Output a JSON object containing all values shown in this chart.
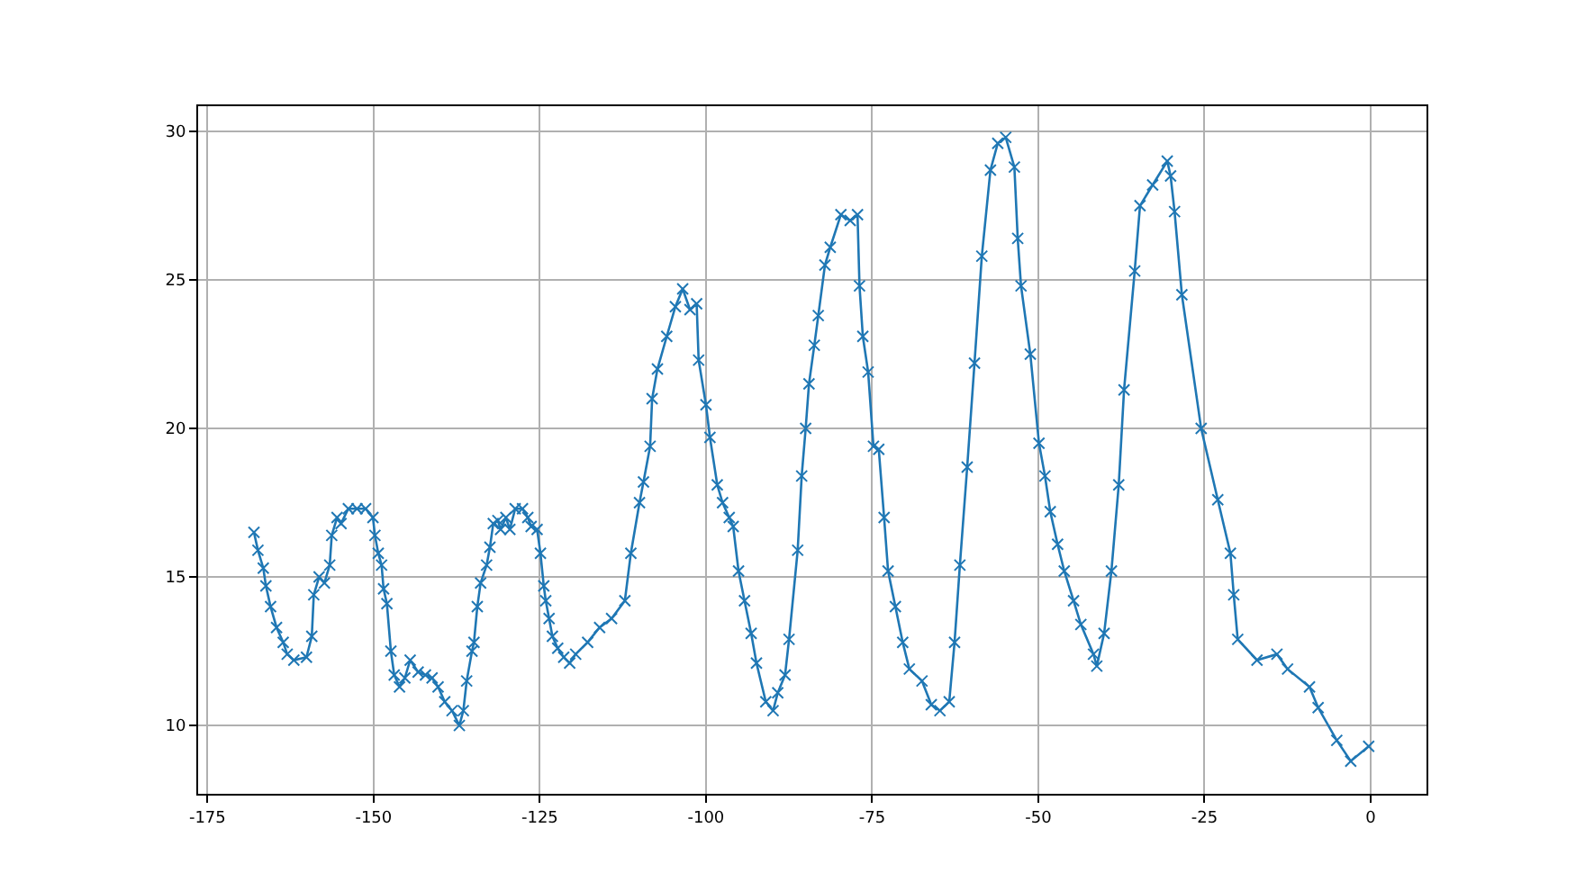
{
  "chart_data": {
    "type": "line",
    "marker": "cross",
    "line_style": "solid",
    "grid": true,
    "xlim": [
      -176.4,
      8.4
    ],
    "ylim": [
      7.7,
      30.85
    ],
    "xticks": [
      -175,
      -150,
      -125,
      -100,
      -75,
      -50,
      -25,
      0
    ],
    "yticks": [
      10,
      15,
      20,
      25,
      30
    ],
    "series": [
      {
        "color": "#1f77b4",
        "x": [
          -168.0,
          -167.4,
          -166.6,
          -166.2,
          -165.5,
          -164.6,
          -163.6,
          -163.0,
          -162.0,
          -160.1,
          -159.3,
          -159.0,
          -158.2,
          -157.4,
          -156.6,
          -156.3,
          -155.5,
          -154.9,
          -153.8,
          -152.5,
          -151.2,
          -150.1,
          -149.8,
          -149.3,
          -148.8,
          -148.5,
          -148.0,
          -147.4,
          -146.9,
          -146.1,
          -145.3,
          -144.5,
          -143.3,
          -142.2,
          -141.2,
          -140.3,
          -139.3,
          -138.2,
          -137.1,
          -136.5,
          -136.0,
          -135.2,
          -134.9,
          -134.4,
          -133.9,
          -133.0,
          -132.5,
          -132.0,
          -131.3,
          -130.9,
          -130.1,
          -129.5,
          -128.7,
          -127.6,
          -126.8,
          -126.3,
          -125.4,
          -124.9,
          -124.4,
          -124.1,
          -123.6,
          -123.1,
          -122.3,
          -121.4,
          -120.5,
          -119.6,
          -117.8,
          -116.0,
          -114.2,
          -112.2,
          -111.3,
          -110.0,
          -109.4,
          -108.4,
          -108.1,
          -107.3,
          -105.9,
          -104.6,
          -103.5,
          -102.4,
          -101.4,
          -101.1,
          -100.0,
          -99.4,
          -98.3,
          -97.5,
          -96.5,
          -95.9,
          -95.1,
          -94.2,
          -93.2,
          -92.4,
          -91.0,
          -89.9,
          -89.2,
          -88.1,
          -87.5,
          -86.2,
          -85.6,
          -85.0,
          -84.5,
          -83.7,
          -83.1,
          -82.1,
          -81.3,
          -79.7,
          -78.3,
          -77.2,
          -76.9,
          -76.4,
          -75.6,
          -74.8,
          -74.0,
          -73.2,
          -72.6,
          -71.5,
          -70.4,
          -69.4,
          -67.5,
          -66.1,
          -64.8,
          -63.4,
          -62.6,
          -61.8,
          -60.7,
          -59.6,
          -58.5,
          -57.2,
          -56.1,
          -54.9,
          -53.6,
          -53.1,
          -52.6,
          -51.2,
          -49.9,
          -49.0,
          -48.2,
          -47.1,
          -46.1,
          -44.7,
          -43.6,
          -41.7,
          -41.2,
          -40.1,
          -39.0,
          -37.9,
          -37.1,
          -35.5,
          -34.7,
          -32.8,
          -30.6,
          -30.1,
          -29.5,
          -28.4,
          -25.5,
          -23.0,
          -21.1,
          -20.6,
          -20.0,
          -17.1,
          -14.1,
          -12.5,
          -9.2,
          -7.9,
          -5.1,
          -3.0,
          -0.3
        ],
        "values": [
          16.5,
          15.9,
          15.3,
          14.7,
          14.0,
          13.3,
          12.8,
          12.4,
          12.2,
          12.3,
          13.0,
          14.4,
          15.0,
          14.8,
          15.4,
          16.4,
          17.0,
          16.8,
          17.3,
          17.3,
          17.3,
          17.0,
          16.4,
          15.8,
          15.4,
          14.6,
          14.1,
          12.5,
          11.7,
          11.3,
          11.6,
          12.2,
          11.8,
          11.7,
          11.6,
          11.3,
          10.8,
          10.5,
          10.0,
          10.5,
          11.5,
          12.5,
          12.8,
          14.0,
          14.8,
          15.4,
          16.0,
          16.8,
          16.9,
          16.6,
          17.0,
          16.6,
          17.3,
          17.3,
          17.0,
          16.7,
          16.6,
          15.8,
          14.7,
          14.2,
          13.6,
          13.0,
          12.6,
          12.3,
          12.1,
          12.4,
          12.8,
          13.3,
          13.6,
          14.2,
          15.8,
          17.5,
          18.2,
          19.4,
          21.0,
          22.0,
          23.1,
          24.1,
          24.7,
          24.0,
          24.2,
          22.3,
          20.8,
          19.7,
          18.1,
          17.5,
          17.0,
          16.7,
          15.2,
          14.2,
          13.1,
          12.1,
          10.8,
          10.5,
          11.1,
          11.7,
          12.9,
          15.9,
          18.4,
          20.0,
          21.5,
          22.8,
          23.8,
          25.5,
          26.1,
          27.2,
          27.0,
          27.2,
          24.8,
          23.1,
          21.9,
          19.4,
          19.3,
          17.0,
          15.2,
          14.0,
          12.8,
          11.9,
          11.5,
          10.7,
          10.5,
          10.8,
          12.8,
          15.4,
          18.7,
          22.2,
          25.8,
          28.7,
          29.6,
          29.8,
          28.8,
          26.4,
          24.8,
          22.5,
          19.5,
          18.4,
          17.2,
          16.1,
          15.2,
          14.2,
          13.4,
          12.4,
          12.0,
          13.1,
          15.2,
          18.1,
          21.3,
          25.3,
          27.5,
          28.2,
          29.0,
          28.5,
          27.3,
          24.5,
          20.0,
          17.6,
          15.8,
          14.4,
          12.9,
          12.2,
          12.4,
          11.9,
          11.3,
          10.6,
          9.5,
          8.8,
          9.3
        ]
      }
    ]
  }
}
